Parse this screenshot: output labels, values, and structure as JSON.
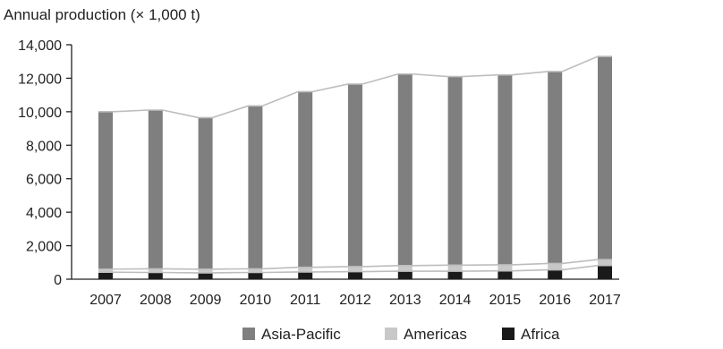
{
  "chart_data": {
    "type": "bar",
    "stacked": true,
    "title": "",
    "xlabel": "",
    "ylabel": "Annual production (× 1,000 t)",
    "ylim": [
      0,
      14000
    ],
    "yticks": [
      0,
      2000,
      4000,
      6000,
      8000,
      10000,
      12000,
      14000
    ],
    "ytick_labels": [
      "0",
      "2,000",
      "4,000",
      "6,000",
      "8,000",
      "10,000",
      "12,000",
      "14,000"
    ],
    "categories": [
      "2007",
      "2008",
      "2009",
      "2010",
      "2011",
      "2012",
      "2013",
      "2014",
      "2015",
      "2016",
      "2017"
    ],
    "series": [
      {
        "name": "Africa",
        "color": "#1a1a1a",
        "values": [
          420,
          400,
          380,
          400,
          430,
          450,
          480,
          480,
          500,
          560,
          820
        ]
      },
      {
        "name": "Americas",
        "color": "#c8c8c8",
        "values": [
          180,
          220,
          220,
          220,
          280,
          300,
          330,
          360,
          360,
          380,
          350
        ]
      },
      {
        "name": "Asia-Pacific",
        "color": "#7f7f7f",
        "values": [
          9400,
          9480,
          9050,
          9730,
          10490,
          10900,
          11440,
          11260,
          11340,
          11460,
          12130
        ]
      }
    ],
    "connector_lines": true,
    "grid": false,
    "legend": {
      "placement": "bottom-center",
      "order": [
        "Asia-Pacific",
        "Americas",
        "Africa"
      ]
    }
  }
}
